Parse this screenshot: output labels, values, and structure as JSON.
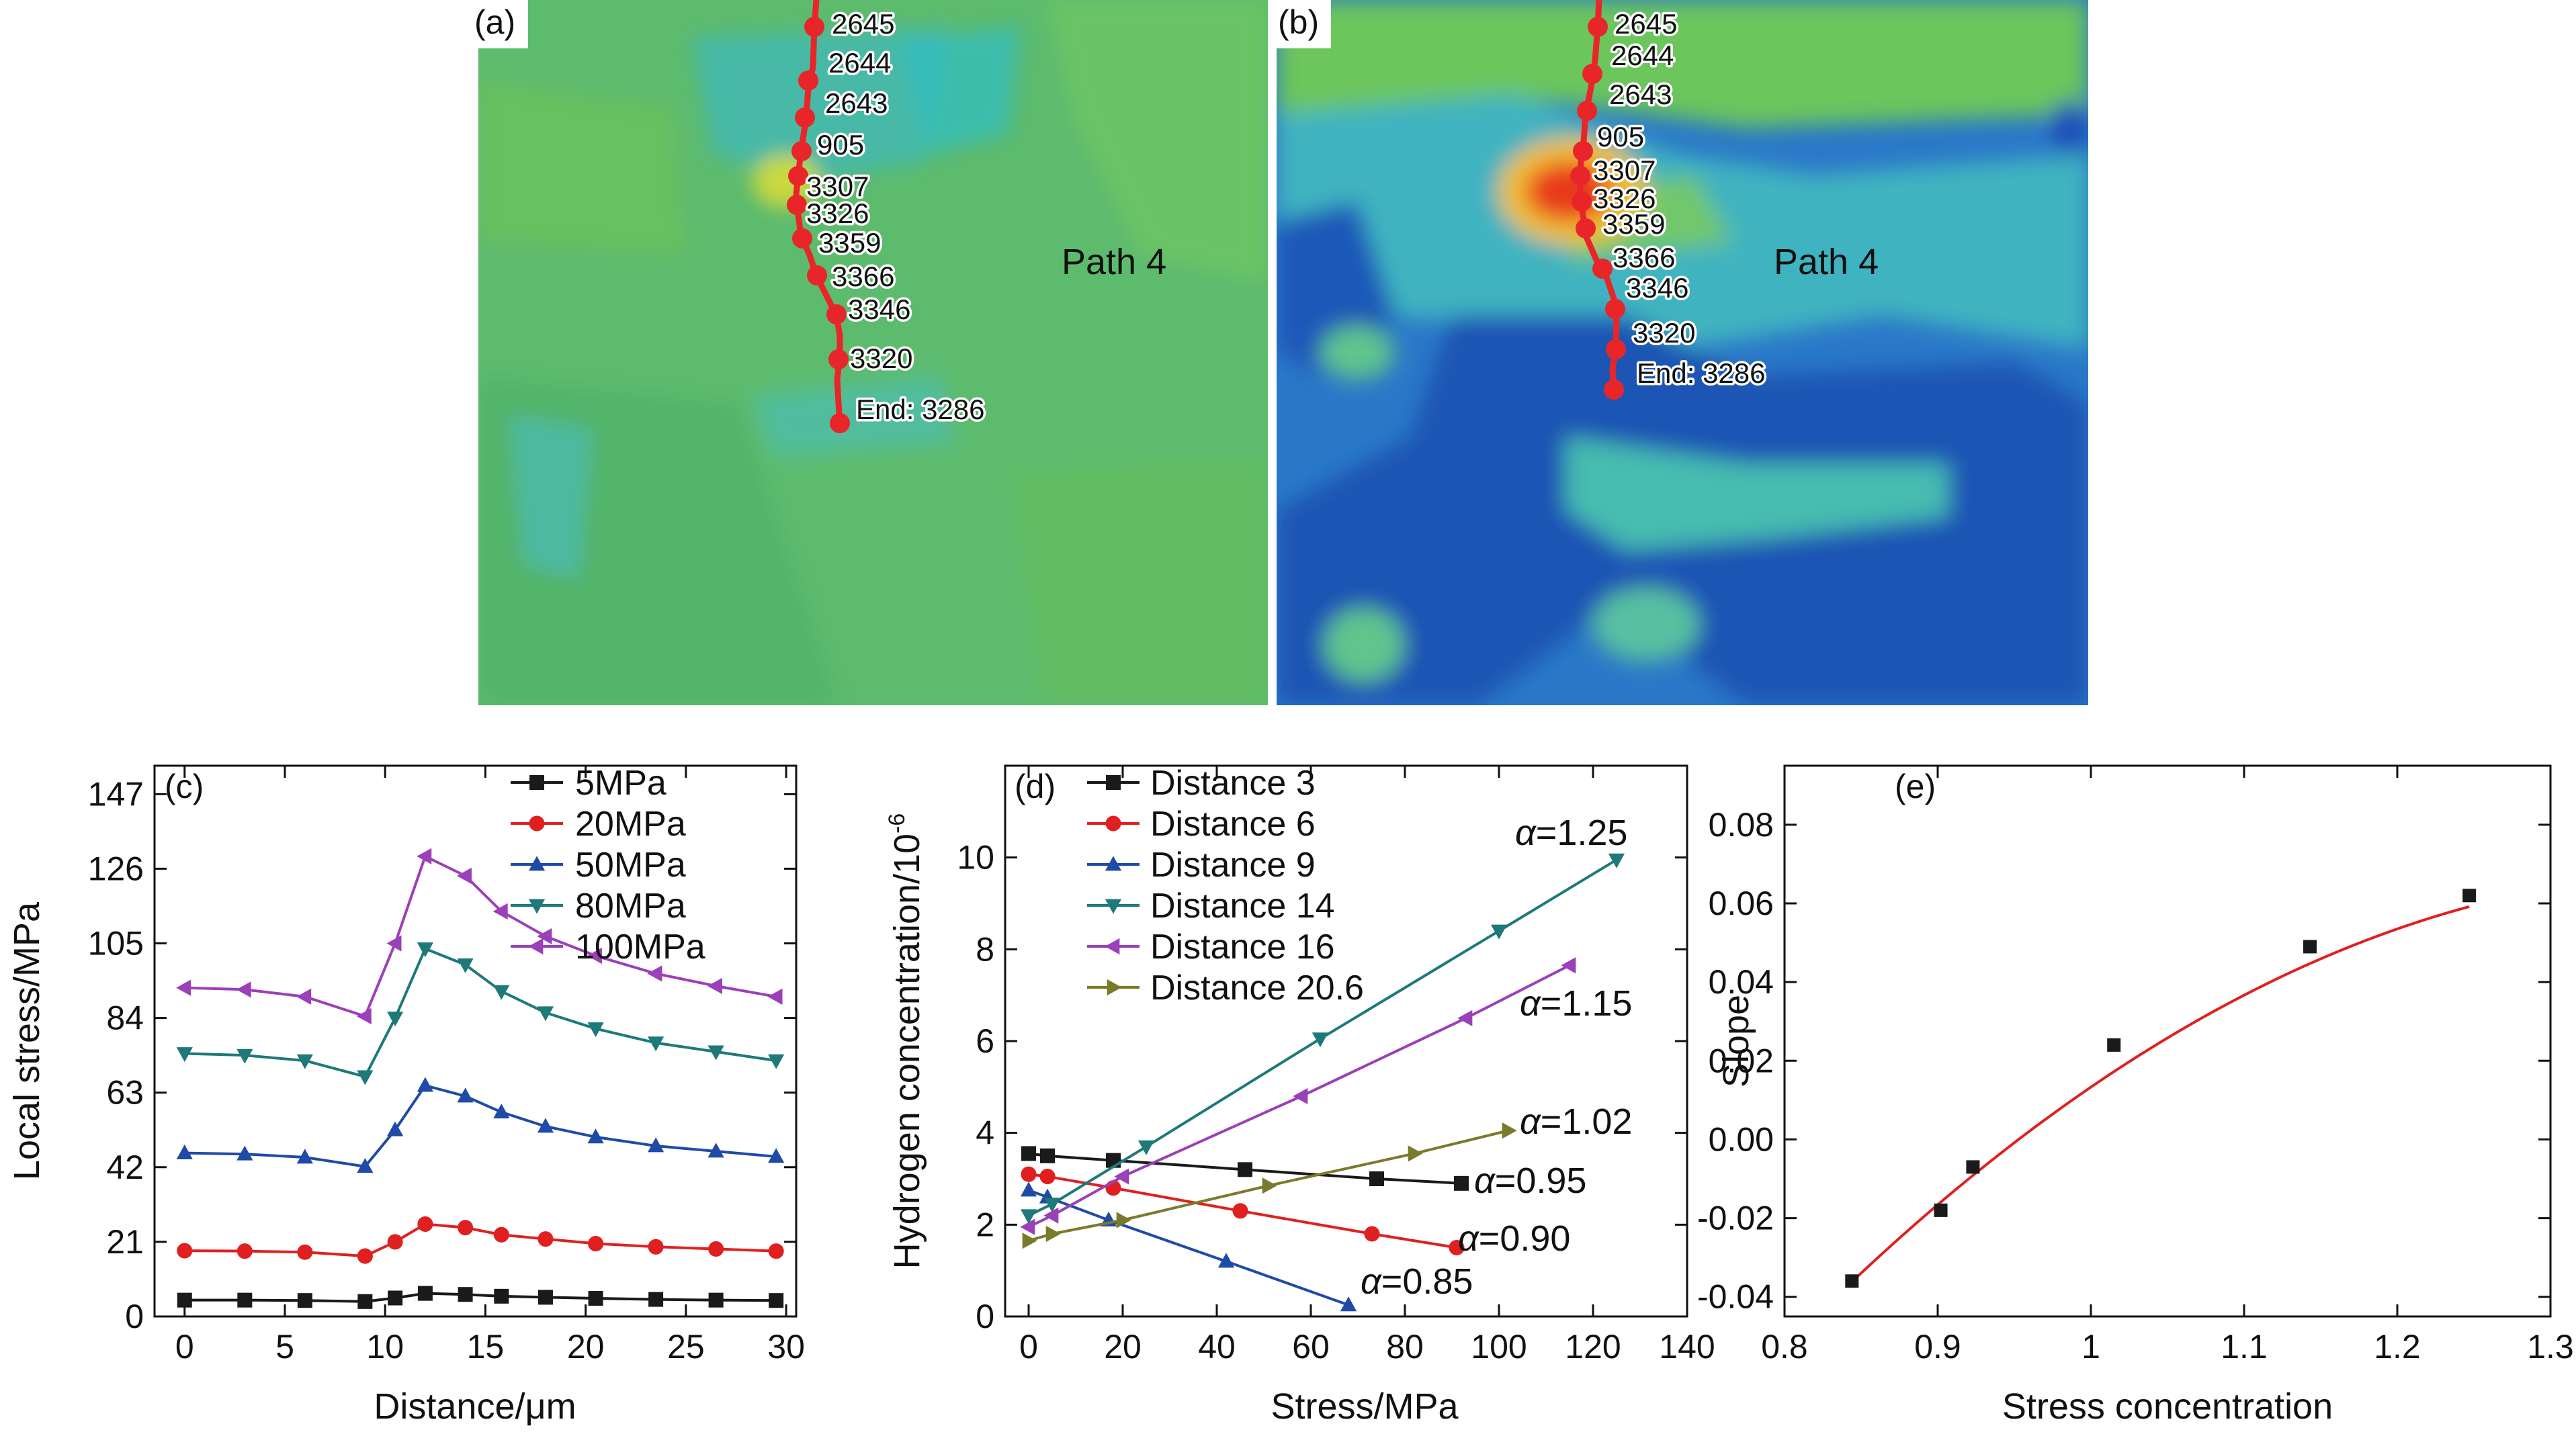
{
  "maps": [
    {
      "label": "(a)",
      "path_label": "Path 4",
      "nodes": [
        {
          "id": "2645",
          "prefix": ""
        },
        {
          "id": "2644",
          "prefix": ""
        },
        {
          "id": "2643",
          "prefix": ""
        },
        {
          "id": "905",
          "prefix": ""
        },
        {
          "id": "3307",
          "prefix": ""
        },
        {
          "id": "3326",
          "prefix": ""
        },
        {
          "id": "3359",
          "prefix": ""
        },
        {
          "id": "3366",
          "prefix": ""
        },
        {
          "id": "3346",
          "prefix": ""
        },
        {
          "id": "3320",
          "prefix": ""
        },
        {
          "id": "3286",
          "prefix": "End:"
        }
      ]
    },
    {
      "label": "(b)",
      "path_label": "Path 4",
      "nodes": [
        {
          "id": "2645",
          "prefix": ""
        },
        {
          "id": "2644",
          "prefix": ""
        },
        {
          "id": "2643",
          "prefix": ""
        },
        {
          "id": "905",
          "prefix": ""
        },
        {
          "id": "3307",
          "prefix": ""
        },
        {
          "id": "3326",
          "prefix": ""
        },
        {
          "id": "3359",
          "prefix": ""
        },
        {
          "id": "3366",
          "prefix": ""
        },
        {
          "id": "3346",
          "prefix": ""
        },
        {
          "id": "3320",
          "prefix": ""
        },
        {
          "id": "3286",
          "prefix": "End:"
        }
      ]
    }
  ],
  "chart_data": [
    {
      "panel": "(c)",
      "type": "line",
      "xlabel": "Distance/μm",
      "ylabel": "Local stress/MPa",
      "xlim": [
        -1.5,
        30.5
      ],
      "ylim": [
        0,
        155
      ],
      "xticks": [
        0,
        5,
        10,
        15,
        20,
        25,
        30
      ],
      "yticks": [
        0,
        21,
        42,
        63,
        84,
        105,
        126,
        147
      ],
      "x": [
        0,
        3,
        6,
        9,
        10.5,
        12,
        14,
        15.8,
        18,
        20.5,
        23.5,
        26.5,
        29.5
      ],
      "series": [
        {
          "name": "5MPa",
          "color": "#1a1a1a",
          "marker": "square",
          "values": [
            4.6,
            4.6,
            4.5,
            4.2,
            5.2,
            6.5,
            6.2,
            5.7,
            5.4,
            5.1,
            4.8,
            4.6,
            4.5
          ]
        },
        {
          "name": "20MPa",
          "color": "#e02020",
          "marker": "circle",
          "values": [
            18.5,
            18.4,
            18.1,
            17.0,
            21.0,
            26.0,
            25.0,
            23.0,
            21.8,
            20.5,
            19.6,
            19.0,
            18.4
          ]
        },
        {
          "name": "50MPa",
          "color": "#1f4aa8",
          "marker": "triangle-up",
          "values": [
            46.0,
            45.7,
            44.8,
            42.2,
            52.5,
            65.0,
            62.0,
            57.5,
            53.5,
            50.5,
            48.0,
            46.5,
            45.0
          ]
        },
        {
          "name": "80MPa",
          "color": "#1d7a78",
          "marker": "triangle-down",
          "values": [
            74.0,
            73.5,
            72.0,
            67.5,
            84.0,
            103.5,
            99.0,
            91.5,
            85.5,
            81.0,
            77.0,
            74.5,
            72.0
          ]
        },
        {
          "name": "100MPa",
          "color": "#9b40b8",
          "marker": "triangle-left",
          "values": [
            92.5,
            92.0,
            90.0,
            84.5,
            105.0,
            129.5,
            124.0,
            114.0,
            107.0,
            101.5,
            96.5,
            93.0,
            90.0
          ]
        }
      ]
    },
    {
      "panel": "(d)",
      "type": "line",
      "xlabel": "Stress/MPa",
      "ylabel": "Hydrogen concentration/10",
      "ylabel_sup": "-6",
      "xlim": [
        -5,
        140
      ],
      "ylim": [
        0,
        12
      ],
      "xticks": [
        0,
        20,
        40,
        60,
        80,
        100,
        120,
        140
      ],
      "yticks": [
        0,
        2,
        4,
        6,
        8,
        10
      ],
      "series": [
        {
          "name": "Distance 3",
          "color": "#1a1a1a",
          "marker": "square",
          "alpha_label": "=0.95",
          "x": [
            0,
            4,
            18,
            46,
            74,
            92
          ],
          "y": [
            3.55,
            3.5,
            3.4,
            3.2,
            3.0,
            2.9
          ]
        },
        {
          "name": "Distance 6",
          "color": "#e02020",
          "marker": "circle",
          "alpha_label": "=0.90",
          "x": [
            0,
            4,
            18,
            45,
            73,
            91
          ],
          "y": [
            3.1,
            3.05,
            2.8,
            2.3,
            1.8,
            1.5
          ]
        },
        {
          "name": "Distance 9",
          "color": "#1f4aa8",
          "marker": "triangle-up",
          "alpha_label": "=0.85",
          "x": [
            0,
            4,
            17,
            42,
            68
          ],
          "y": [
            2.75,
            2.6,
            2.1,
            1.2,
            0.25
          ]
        },
        {
          "name": "Distance 14",
          "color": "#1d7a78",
          "marker": "triangle-down",
          "alpha_label": "=1.25",
          "x": [
            0,
            5,
            25,
            62,
            100,
            125
          ],
          "y": [
            2.2,
            2.45,
            3.7,
            6.05,
            8.4,
            9.95
          ]
        },
        {
          "name": "Distance 16",
          "color": "#9b40b8",
          "marker": "triangle-left",
          "alpha_label": "=1.15",
          "x": [
            0,
            5,
            20,
            58,
            93,
            115
          ],
          "y": [
            1.95,
            2.2,
            3.05,
            4.8,
            6.5,
            7.65
          ]
        },
        {
          "name": "Distance 20.6",
          "color": "#7a7a2a",
          "marker": "triangle-right",
          "alpha_label": "=1.02",
          "x": [
            0,
            5,
            20,
            51,
            82,
            102
          ],
          "y": [
            1.65,
            1.8,
            2.1,
            2.85,
            3.55,
            4.05
          ]
        }
      ]
    },
    {
      "panel": "(e)",
      "type": "scatter",
      "xlabel": "Stress concentration",
      "ylabel": "Slope",
      "xlim": [
        0.8,
        1.3
      ],
      "ylim": [
        -0.045,
        0.095
      ],
      "xticks": [
        0.8,
        0.9,
        1.0,
        1.1,
        1.2,
        1.3
      ],
      "ytick_labels": [
        "-0.04",
        "-0.02",
        "0.00",
        "0.02",
        "0.04",
        "0.06",
        "0.08"
      ],
      "yticks": [
        -0.04,
        -0.02,
        0.0,
        0.02,
        0.04,
        0.06,
        0.08
      ],
      "points": {
        "x": [
          0.844,
          0.902,
          0.923,
          1.015,
          1.143,
          1.247
        ],
        "y": [
          -0.036,
          -0.018,
          -0.007,
          0.024,
          0.049,
          0.062
        ]
      },
      "fit": {
        "type": "quadratic",
        "color": "#e02020",
        "coefficients_a_b_c": [
          -0.3262,
          0.9187,
          -0.5792
        ],
        "x_range": [
          0.844,
          1.247
        ]
      }
    }
  ]
}
